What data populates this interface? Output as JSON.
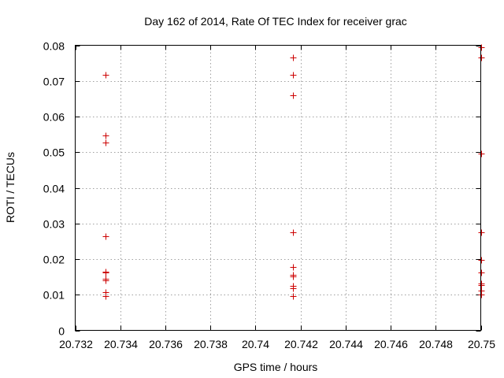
{
  "chart_data": {
    "type": "scatter",
    "title": "Day 162 of 2014, Rate Of TEC Index for receiver grac",
    "xlabel": "GPS time / hours",
    "ylabel": "ROTI / TECUs",
    "xlim": [
      20.732,
      20.75
    ],
    "ylim": [
      0,
      0.08
    ],
    "x_ticks": [
      20.732,
      20.734,
      20.736,
      20.738,
      20.74,
      20.742,
      20.744,
      20.746,
      20.748,
      20.75
    ],
    "x_tick_labels": [
      "20.732",
      "20.734",
      "20.736",
      "20.738",
      "20.74",
      "20.742",
      "20.744",
      "20.746",
      "20.748",
      "20.75"
    ],
    "y_ticks": [
      0,
      0.01,
      0.02,
      0.03,
      0.04,
      0.05,
      0.06,
      0.07,
      0.08
    ],
    "y_tick_labels": [
      "0",
      "0.01",
      "0.02",
      "0.03",
      "0.04",
      "0.05",
      "0.06",
      "0.07",
      "0.08"
    ],
    "grid": true,
    "series": [
      {
        "name": "ROTI",
        "color": "#cc0000",
        "marker": "+",
        "points": [
          [
            20.73333,
            0.0718
          ],
          [
            20.73333,
            0.0547
          ],
          [
            20.73333,
            0.0527
          ],
          [
            20.73333,
            0.0265
          ],
          [
            20.73333,
            0.0165
          ],
          [
            20.73333,
            0.0162
          ],
          [
            20.73333,
            0.0145
          ],
          [
            20.73333,
            0.0141
          ],
          [
            20.73333,
            0.0108
          ],
          [
            20.73333,
            0.0096
          ],
          [
            20.74167,
            0.0765
          ],
          [
            20.74167,
            0.0718
          ],
          [
            20.74167,
            0.066
          ],
          [
            20.74167,
            0.0275
          ],
          [
            20.74167,
            0.0178
          ],
          [
            20.74167,
            0.0156
          ],
          [
            20.74167,
            0.0152
          ],
          [
            20.74167,
            0.0124
          ],
          [
            20.74167,
            0.0119
          ],
          [
            20.74167,
            0.0096
          ],
          [
            20.75,
            0.0795
          ],
          [
            20.75,
            0.0765
          ],
          [
            20.75,
            0.0497
          ],
          [
            20.75,
            0.0275
          ],
          [
            20.75,
            0.0198
          ],
          [
            20.75,
            0.0162
          ],
          [
            20.75,
            0.0131
          ],
          [
            20.75,
            0.0128
          ],
          [
            20.75,
            0.0112
          ],
          [
            20.75,
            0.0101
          ]
        ]
      }
    ]
  }
}
